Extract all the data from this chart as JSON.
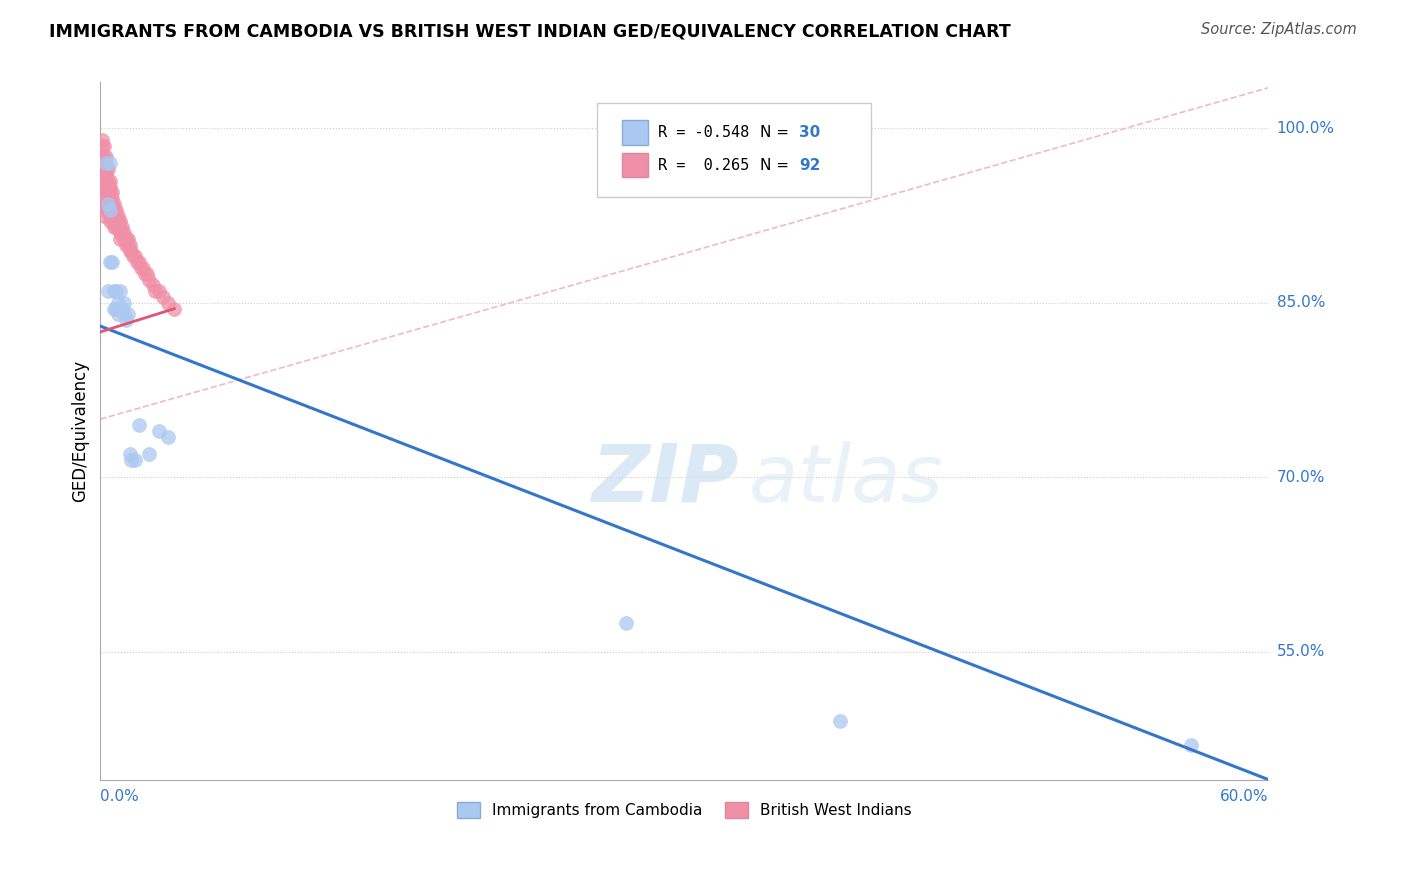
{
  "title": "IMMIGRANTS FROM CAMBODIA VS BRITISH WEST INDIAN GED/EQUIVALENCY CORRELATION CHART",
  "source": "Source: ZipAtlas.com",
  "ylabel": "GED/Equivalency",
  "ytick_labels": [
    "100.0%",
    "85.0%",
    "70.0%",
    "55.0%"
  ],
  "ytick_values": [
    1.0,
    0.85,
    0.7,
    0.55
  ],
  "xlim": [
    0.0,
    0.6
  ],
  "ylim": [
    0.44,
    1.04
  ],
  "color_blue": "#aac8f0",
  "color_pink": "#f090a8",
  "color_blue_line": "#3377cc",
  "color_pink_line": "#e05575",
  "color_diag_line": "#f0b8c8",
  "watermark_1": "ZIP",
  "watermark_2": "atlas",
  "cambodia_x": [
    0.003,
    0.004,
    0.004,
    0.005,
    0.005,
    0.005,
    0.006,
    0.007,
    0.007,
    0.008,
    0.008,
    0.009,
    0.009,
    0.01,
    0.01,
    0.011,
    0.012,
    0.012,
    0.013,
    0.014,
    0.015,
    0.016,
    0.018,
    0.02,
    0.025,
    0.03,
    0.035,
    0.27,
    0.38,
    0.56
  ],
  "cambodia_y": [
    0.97,
    0.935,
    0.86,
    0.97,
    0.93,
    0.885,
    0.885,
    0.86,
    0.845,
    0.86,
    0.845,
    0.85,
    0.84,
    0.86,
    0.845,
    0.845,
    0.85,
    0.84,
    0.835,
    0.84,
    0.72,
    0.715,
    0.715,
    0.745,
    0.72,
    0.74,
    0.735,
    0.575,
    0.49,
    0.47
  ],
  "bwi_x": [
    0.001,
    0.001,
    0.001,
    0.001,
    0.001,
    0.001,
    0.001,
    0.001,
    0.001,
    0.002,
    0.002,
    0.002,
    0.002,
    0.002,
    0.002,
    0.002,
    0.002,
    0.002,
    0.002,
    0.002,
    0.002,
    0.003,
    0.003,
    0.003,
    0.003,
    0.003,
    0.003,
    0.003,
    0.003,
    0.004,
    0.004,
    0.004,
    0.004,
    0.004,
    0.004,
    0.004,
    0.005,
    0.005,
    0.005,
    0.005,
    0.005,
    0.005,
    0.005,
    0.005,
    0.006,
    0.006,
    0.006,
    0.006,
    0.006,
    0.006,
    0.007,
    0.007,
    0.007,
    0.007,
    0.007,
    0.008,
    0.008,
    0.008,
    0.008,
    0.009,
    0.009,
    0.009,
    0.01,
    0.01,
    0.01,
    0.01,
    0.011,
    0.011,
    0.012,
    0.012,
    0.013,
    0.013,
    0.014,
    0.014,
    0.015,
    0.015,
    0.016,
    0.017,
    0.018,
    0.019,
    0.02,
    0.021,
    0.022,
    0.023,
    0.024,
    0.025,
    0.027,
    0.028,
    0.03,
    0.032,
    0.035,
    0.038
  ],
  "bwi_y": [
    0.99,
    0.985,
    0.975,
    0.97,
    0.965,
    0.96,
    0.955,
    0.95,
    0.945,
    0.985,
    0.975,
    0.97,
    0.965,
    0.96,
    0.955,
    0.95,
    0.945,
    0.94,
    0.935,
    0.93,
    0.925,
    0.975,
    0.965,
    0.96,
    0.955,
    0.95,
    0.945,
    0.94,
    0.935,
    0.965,
    0.955,
    0.95,
    0.945,
    0.94,
    0.935,
    0.93,
    0.955,
    0.95,
    0.945,
    0.94,
    0.935,
    0.93,
    0.925,
    0.92,
    0.945,
    0.94,
    0.935,
    0.93,
    0.925,
    0.92,
    0.935,
    0.93,
    0.925,
    0.92,
    0.915,
    0.93,
    0.925,
    0.92,
    0.915,
    0.925,
    0.92,
    0.915,
    0.92,
    0.915,
    0.91,
    0.905,
    0.915,
    0.91,
    0.91,
    0.905,
    0.905,
    0.9,
    0.905,
    0.9,
    0.9,
    0.895,
    0.895,
    0.89,
    0.89,
    0.885,
    0.885,
    0.88,
    0.88,
    0.875,
    0.875,
    0.87,
    0.865,
    0.86,
    0.86,
    0.855,
    0.85,
    0.845
  ],
  "cambodia_line_x": [
    0.0,
    0.6
  ],
  "cambodia_line_y": [
    0.83,
    0.44
  ],
  "bwi_line_x": [
    0.0,
    0.038
  ],
  "bwi_line_y": [
    0.825,
    0.845
  ],
  "diag_line_x": [
    0.0,
    0.6
  ],
  "diag_line_y": [
    0.75,
    1.035
  ]
}
